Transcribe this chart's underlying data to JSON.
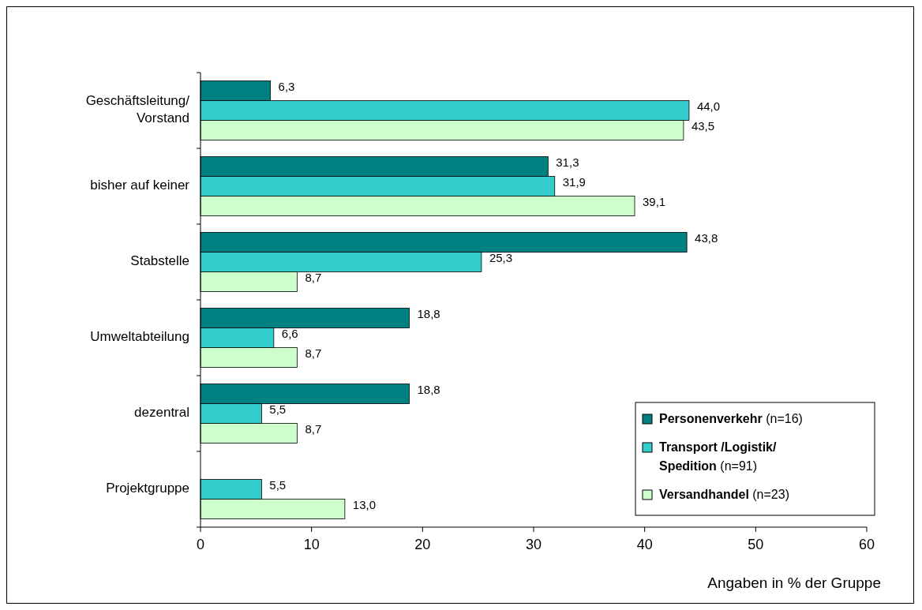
{
  "chart_data": {
    "type": "bar",
    "orientation": "horizontal",
    "xlabel": "Angaben in % der Gruppe",
    "categories": [
      "Geschäftsleitung/\nVorstand",
      "bisher auf keiner",
      "Stabstelle",
      "Umweltabteilung",
      "dezentral",
      "Projektgruppe"
    ],
    "series": [
      {
        "name": "Personenverkehr (n=16)",
        "color": "#008080",
        "values": [
          6.3,
          31.3,
          43.8,
          18.8,
          18.8,
          0
        ],
        "value_labels": [
          "6,3",
          "31,3",
          "43,8",
          "18,8",
          "18,8",
          null
        ]
      },
      {
        "name": "Transport /Logistik/\nSpedition (n=91)",
        "color": "#33cccc",
        "values": [
          44.0,
          31.9,
          25.3,
          6.6,
          5.5,
          5.5
        ],
        "value_labels": [
          "44,0",
          "31,9",
          "25,3",
          "6,6",
          "5,5",
          "5,5"
        ]
      },
      {
        "name": "Versandhandel (n=23)",
        "color": "#ccffcc",
        "values": [
          43.5,
          39.1,
          8.7,
          8.7,
          8.7,
          13.0
        ],
        "value_labels": [
          "43,5",
          "39,1",
          "8,7",
          "8,7",
          "8,7",
          "13,0"
        ]
      }
    ],
    "xlim": [
      0,
      60
    ],
    "xticks": [
      0,
      10,
      20,
      30,
      40,
      50,
      60
    ],
    "grid": false,
    "legend": "bottom right"
  }
}
